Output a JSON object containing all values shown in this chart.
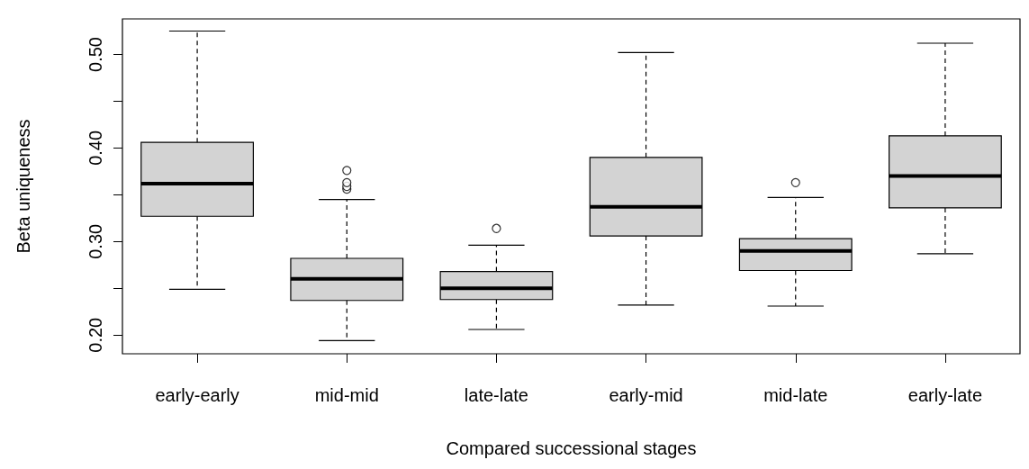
{
  "chart_data": {
    "type": "box",
    "xlabel": "Compared successional stages",
    "ylabel": "Beta uniqueness",
    "categories": [
      "early-early",
      "mid-mid",
      "late-late",
      "early-mid",
      "mid-late",
      "early-late"
    ],
    "color": "#d3d3d3",
    "boxes": [
      {
        "low": 0.249,
        "q1": 0.327,
        "median": 0.362,
        "q3": 0.406,
        "high": 0.525
      },
      {
        "low": 0.194,
        "q1": 0.237,
        "median": 0.26,
        "q3": 0.282,
        "high": 0.345,
        "outliers": [
          0.356,
          0.359,
          0.363,
          0.376
        ]
      },
      {
        "low": 0.206,
        "q1": 0.238,
        "median": 0.25,
        "q3": 0.268,
        "high": 0.296,
        "outliers": [
          0.314
        ]
      },
      {
        "low": 0.232,
        "q1": 0.306,
        "median": 0.337,
        "q3": 0.39,
        "high": 0.502
      },
      {
        "low": 0.231,
        "q1": 0.269,
        "median": 0.29,
        "q3": 0.303,
        "high": 0.347,
        "outliers": [
          0.363
        ]
      },
      {
        "low": 0.287,
        "q1": 0.336,
        "median": 0.37,
        "q3": 0.413,
        "high": 0.512
      }
    ],
    "ylim": [
      0.18,
      0.538
    ],
    "yticks": [
      {
        "value": 0.2,
        "label": "0.20"
      },
      {
        "value": 0.25,
        "label": null
      },
      {
        "value": 0.3,
        "label": "0.30"
      },
      {
        "value": 0.35,
        "label": null
      },
      {
        "value": 0.4,
        "label": "0.40"
      },
      {
        "value": 0.45,
        "label": null
      },
      {
        "value": 0.5,
        "label": "0.50"
      }
    ]
  }
}
